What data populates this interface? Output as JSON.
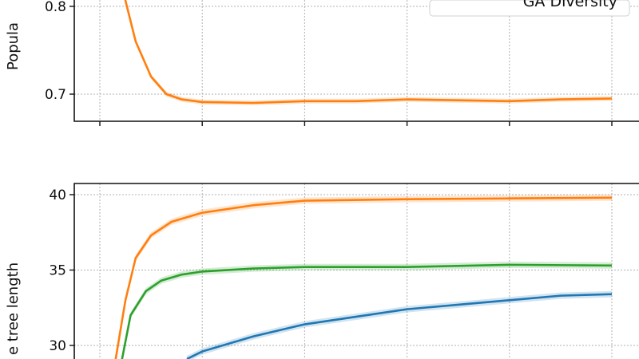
{
  "chart_data": [
    {
      "type": "line",
      "ylabel": "Popula",
      "yticks": [
        "0.7",
        "0.8"
      ],
      "ytick_values": [
        0.7,
        0.8
      ],
      "xticks_count": 6,
      "xtick_labels_visible": false,
      "grid": true,
      "legend": {
        "placement": "top-right",
        "entries": [
          "GA Diversity"
        ]
      },
      "series": [
        {
          "color": "#ff7f0e",
          "x": [
            0.2,
            0.35,
            0.5,
            0.65,
            0.8,
            1.0,
            1.5,
            2.0,
            2.5,
            3.0,
            3.5,
            4.0,
            4.5,
            5.0
          ],
          "y": [
            0.83,
            0.76,
            0.72,
            0.7,
            0.694,
            0.691,
            0.69,
            0.692,
            0.692,
            0.694,
            0.693,
            0.692,
            0.694,
            0.695
          ]
        }
      ]
    },
    {
      "type": "line",
      "ylabel": "e tree length",
      "yticks": [
        "30",
        "35",
        "40"
      ],
      "ytick_values": [
        30,
        35,
        40
      ],
      "xticks_count": 6,
      "xtick_labels_visible": false,
      "grid": true,
      "series": [
        {
          "color": "#ff7f0e",
          "x": [
            0.14,
            0.25,
            0.35,
            0.5,
            0.7,
            1.0,
            1.5,
            2.0,
            3.0,
            4.0,
            5.0
          ],
          "y": [
            28.5,
            33.0,
            35.8,
            37.3,
            38.2,
            38.8,
            39.3,
            39.6,
            39.7,
            39.75,
            39.8
          ]
        },
        {
          "color": "#2ca02c",
          "x": [
            0.2,
            0.3,
            0.45,
            0.6,
            0.8,
            1.0,
            1.5,
            2.0,
            3.0,
            4.0,
            5.0
          ],
          "y": [
            28.5,
            32.0,
            33.6,
            34.3,
            34.7,
            34.9,
            35.1,
            35.2,
            35.2,
            35.35,
            35.3
          ]
        },
        {
          "color": "#1f77b4",
          "x": [
            0.85,
            1.0,
            1.5,
            2.0,
            2.5,
            3.0,
            3.5,
            4.0,
            4.5,
            5.0
          ],
          "y": [
            29.1,
            29.6,
            30.6,
            31.4,
            31.9,
            32.4,
            32.7,
            33.0,
            33.3,
            33.4
          ]
        }
      ]
    }
  ]
}
